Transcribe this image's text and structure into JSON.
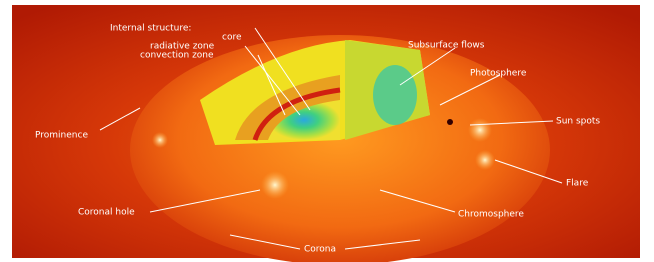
{
  "internal_structure": {
    "title": "Internal structure:",
    "layers": [
      "core",
      "radiative zone",
      "convection zone"
    ]
  },
  "callouts": [
    "Subsurface flows",
    "Photosphere",
    "Sun spots",
    "Prominence",
    "Flare",
    "Coronal hole",
    "Chromosphere",
    "Corona"
  ]
}
